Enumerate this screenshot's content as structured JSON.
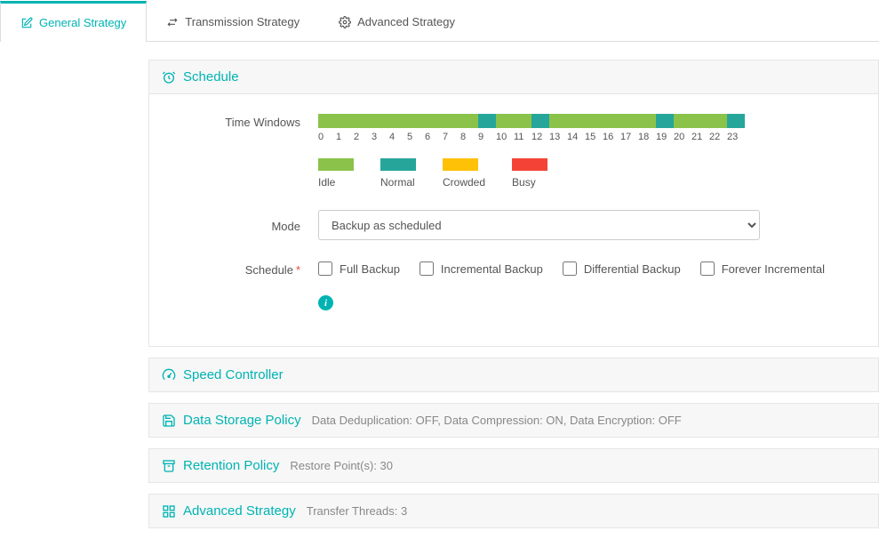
{
  "tabs": [
    {
      "label": "General Strategy",
      "active": true
    },
    {
      "label": "Transmission Strategy",
      "active": false
    },
    {
      "label": "Advanced Strategy",
      "active": false
    }
  ],
  "schedule_panel": {
    "title": "Schedule",
    "time_windows_label": "Time Windows",
    "hours": [
      "0",
      "1",
      "2",
      "3",
      "4",
      "5",
      "6",
      "7",
      "8",
      "9",
      "10",
      "11",
      "12",
      "13",
      "14",
      "15",
      "16",
      "17",
      "18",
      "19",
      "20",
      "21",
      "22",
      "23"
    ],
    "segments": [
      "idle",
      "idle",
      "idle",
      "idle",
      "idle",
      "idle",
      "idle",
      "idle",
      "idle",
      "normal",
      "idle",
      "idle",
      "normal",
      "idle",
      "idle",
      "idle",
      "idle",
      "idle",
      "idle",
      "normal",
      "idle",
      "idle",
      "idle",
      "normal"
    ],
    "colors": {
      "idle": "#8bc34a",
      "normal": "#26a69a",
      "crowded": "#ffc107",
      "busy": "#f44336"
    },
    "legend": [
      {
        "key": "idle",
        "label": "Idle",
        "color": "#8bc34a"
      },
      {
        "key": "normal",
        "label": "Normal",
        "color": "#26a69a"
      },
      {
        "key": "crowded",
        "label": "Crowded",
        "color": "#ffc107"
      },
      {
        "key": "busy",
        "label": "Busy",
        "color": "#f44336"
      }
    ],
    "mode_label": "Mode",
    "mode_value": "Backup as scheduled",
    "schedule_label": "Schedule",
    "backup_types": [
      {
        "label": "Full Backup",
        "checked": false
      },
      {
        "label": "Incremental Backup",
        "checked": false
      },
      {
        "label": "Differential Backup",
        "checked": false
      },
      {
        "label": "Forever Incremental",
        "checked": false
      }
    ]
  },
  "speed_panel": {
    "title": "Speed Controller"
  },
  "storage_panel": {
    "title": "Data Storage Policy",
    "summary": "Data Deduplication: OFF, Data Compression: ON, Data Encryption: OFF"
  },
  "retention_panel": {
    "title": "Retention Policy",
    "summary": "Restore Point(s): 30"
  },
  "advanced_panel": {
    "title": "Advanced Strategy",
    "summary": "Transfer Threads: 3"
  }
}
